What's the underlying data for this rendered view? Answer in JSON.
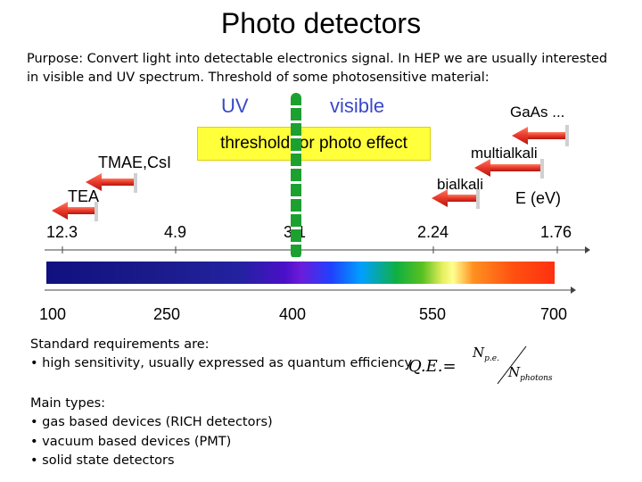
{
  "title": "Photo detectors",
  "purpose": "Purpose: Convert light into detectable electronics signal. In HEP we are usually interested in visible and UV spectrum. Threshold of some photosensitive material:",
  "diagram": {
    "uv_label": "UV",
    "visible_label": "visible",
    "threshold_label": "threshold for photo effect",
    "materials": [
      "GaAs ...",
      "multialkali",
      "bialkali",
      "TMAE,CsI",
      "TEA"
    ],
    "energy_axis_label": "E (eV)",
    "energy_ticks": [
      "12.3",
      "4.9",
      "3.1",
      "2.24",
      "1.76"
    ],
    "wavelength_ticks": [
      "100",
      "250",
      "400",
      "550",
      "700"
    ]
  },
  "requirements": {
    "heading": "Standard requirements are:",
    "item": "• high sensitivity, usually expressed as quantum efficiency"
  },
  "formula": {
    "lhs": "Q.E.=",
    "numerator": "N",
    "numerator_sub": "p.e.",
    "denominator": "N",
    "denominator_sub": "photons"
  },
  "types": {
    "heading": "Main types:",
    "items": [
      "• gas based devices (RICH detectors)",
      "• vacuum based devices (PMT)",
      "• solid state detectors"
    ]
  },
  "colors": {
    "arrow": "#e8382a",
    "uv_text": "#3a48c8",
    "threshold_box": "#ffff3a",
    "divider": "#1ca030"
  }
}
